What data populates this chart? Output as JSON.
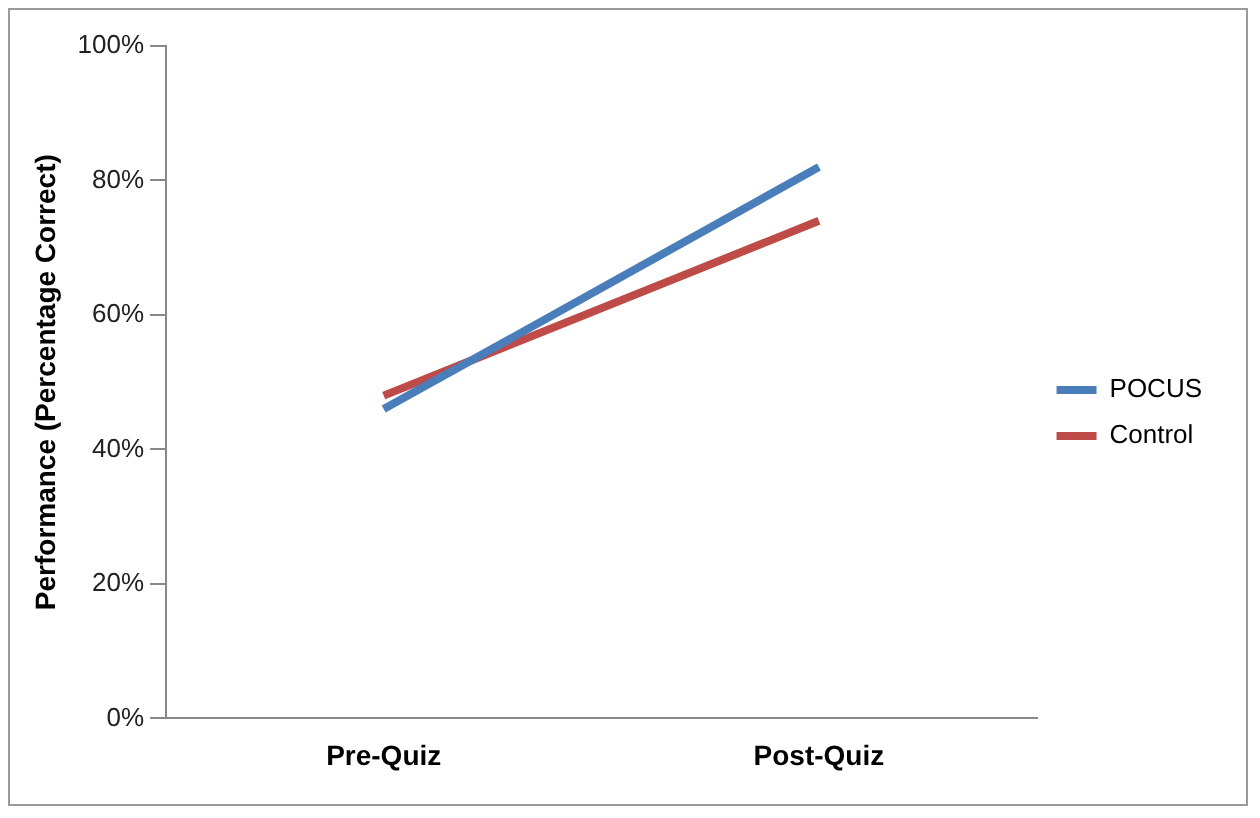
{
  "chart_data": {
    "type": "line",
    "ylabel": "Performance (Percentage Correct)",
    "categories": [
      "Pre-Quiz",
      "Post-Quiz"
    ],
    "series": [
      {
        "name": "POCUS",
        "color": "#4a7ebb",
        "values": [
          46,
          82
        ]
      },
      {
        "name": "Control",
        "color": "#be4b48",
        "values": [
          48,
          74
        ]
      }
    ],
    "ylim": [
      0,
      100
    ],
    "yticks": [
      {
        "value": 0,
        "label": "0%"
      },
      {
        "value": 20,
        "label": "20%"
      },
      {
        "value": 40,
        "label": "40%"
      },
      {
        "value": 60,
        "label": "60%"
      },
      {
        "value": 80,
        "label": "80%"
      },
      {
        "value": 100,
        "label": "100%"
      }
    ],
    "grid": false,
    "legend": "right",
    "marker": "none"
  }
}
